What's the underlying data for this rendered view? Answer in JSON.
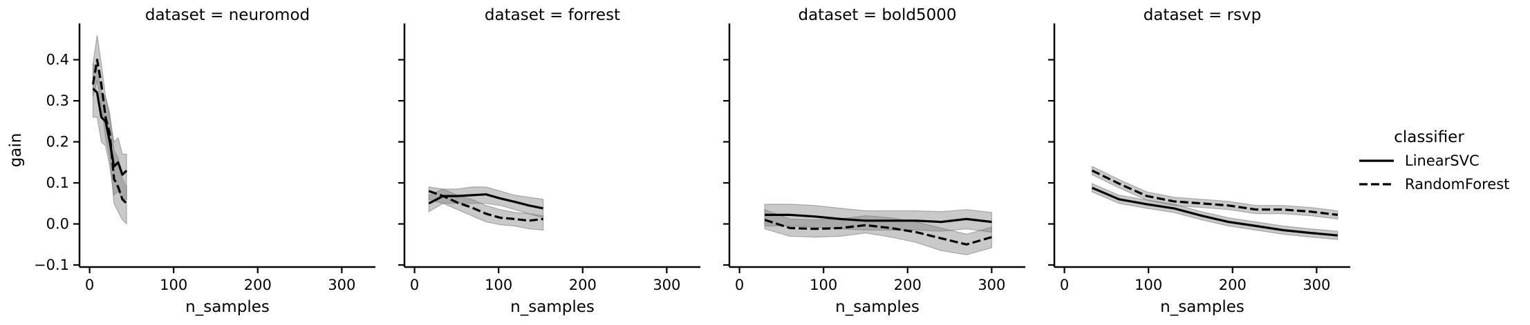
{
  "chart_data": {
    "type": "line",
    "facet_label": "dataset",
    "ylabel": "gain",
    "xlabel": "n_samples",
    "xlim": [
      -12,
      340
    ],
    "ylim": [
      -0.105,
      0.485
    ],
    "x_ticks": [
      0,
      100,
      200,
      300
    ],
    "y_ticks": [
      -0.1,
      0.0,
      0.1,
      0.2,
      0.3,
      0.4
    ],
    "y_tick_labels": [
      "−0.1",
      "0.0",
      "0.1",
      "0.2",
      "0.3",
      "0.4"
    ],
    "grid": false,
    "shaded_bands": "confidence interval (grey)",
    "legend": {
      "title": "classifier",
      "placement": "right",
      "entries": [
        {
          "name": "LinearSVC",
          "style": "solid"
        },
        {
          "name": "RandomForest",
          "style": "dashed"
        }
      ]
    },
    "colors": {
      "line": "#000000",
      "band": "#7f7f7f"
    },
    "panels": [
      {
        "title": "dataset = neuromod",
        "series": [
          {
            "name": "LinearSVC",
            "x": [
              4,
              9,
              14,
              19,
              24,
              29,
              34,
              39,
              44
            ],
            "y": [
              0.33,
              0.32,
              0.26,
              0.25,
              0.2,
              0.14,
              0.15,
              0.12,
              0.13
            ],
            "lower": [
              0.26,
              0.26,
              0.2,
              0.19,
              0.14,
              0.07,
              0.08,
              0.06,
              0.06
            ],
            "upper": [
              0.39,
              0.38,
              0.32,
              0.31,
              0.26,
              0.2,
              0.21,
              0.17,
              0.17
            ]
          },
          {
            "name": "RandomForest",
            "x": [
              4,
              9,
              14,
              19,
              24,
              29,
              34,
              39,
              44
            ],
            "y": [
              0.34,
              0.4,
              0.34,
              0.26,
              0.22,
              0.11,
              0.09,
              0.06,
              0.05
            ],
            "lower": [
              0.31,
              0.35,
              0.29,
              0.21,
              0.16,
              0.05,
              0.03,
              0.01,
              0.0
            ],
            "upper": [
              0.39,
              0.46,
              0.39,
              0.31,
              0.27,
              0.18,
              0.16,
              0.11,
              0.09
            ]
          }
        ]
      },
      {
        "title": "dataset = forrest",
        "series": [
          {
            "name": "LinearSVC",
            "x": [
              17,
              34,
              51,
              68,
              85,
              102,
              119,
              136,
              153
            ],
            "y": [
              0.05,
              0.068,
              0.068,
              0.07,
              0.072,
              0.062,
              0.054,
              0.045,
              0.038
            ],
            "lower": [
              0.03,
              0.05,
              0.05,
              0.05,
              0.05,
              0.045,
              0.035,
              0.025,
              0.015
            ],
            "upper": [
              0.07,
              0.085,
              0.085,
              0.09,
              0.09,
              0.08,
              0.07,
              0.065,
              0.06
            ]
          },
          {
            "name": "RandomForest",
            "x": [
              17,
              34,
              51,
              68,
              85,
              102,
              119,
              136,
              153
            ],
            "y": [
              0.08,
              0.068,
              0.052,
              0.04,
              0.025,
              0.015,
              0.012,
              0.008,
              0.012
            ],
            "lower": [
              0.06,
              0.05,
              0.035,
              0.02,
              0.005,
              -0.002,
              -0.005,
              -0.012,
              -0.015
            ],
            "upper": [
              0.09,
              0.085,
              0.07,
              0.06,
              0.045,
              0.035,
              0.028,
              0.025,
              0.02
            ]
          }
        ]
      },
      {
        "title": "dataset = bold5000",
        "series": [
          {
            "name": "LinearSVC",
            "x": [
              30,
              60,
              90,
              120,
              150,
              180,
              210,
              240,
              270,
              300
            ],
            "y": [
              0.022,
              0.022,
              0.018,
              0.012,
              0.008,
              0.008,
              0.008,
              0.005,
              0.012,
              0.005
            ],
            "lower": [
              -0.005,
              -0.005,
              -0.008,
              -0.012,
              -0.015,
              -0.015,
              -0.015,
              -0.018,
              -0.012,
              -0.02
            ],
            "upper": [
              0.048,
              0.048,
              0.045,
              0.038,
              0.032,
              0.032,
              0.032,
              0.03,
              0.035,
              0.028
            ]
          },
          {
            "name": "RandomForest",
            "x": [
              30,
              60,
              90,
              120,
              150,
              180,
              210,
              240,
              270,
              300
            ],
            "y": [
              0.01,
              -0.01,
              -0.012,
              -0.01,
              -0.003,
              -0.01,
              -0.02,
              -0.035,
              -0.05,
              -0.032
            ],
            "lower": [
              -0.012,
              -0.03,
              -0.032,
              -0.03,
              -0.022,
              -0.032,
              -0.045,
              -0.065,
              -0.075,
              -0.058
            ],
            "upper": [
              0.035,
              0.012,
              0.01,
              0.012,
              0.02,
              0.015,
              0.005,
              -0.01,
              -0.025,
              -0.008
            ]
          }
        ]
      },
      {
        "title": "dataset = rsvp",
        "series": [
          {
            "name": "LinearSVC",
            "x": [
              33,
              65,
              98,
              130,
              163,
              195,
              228,
              260,
              293,
              325
            ],
            "y": [
              0.088,
              0.06,
              0.048,
              0.038,
              0.02,
              0.005,
              -0.005,
              -0.015,
              -0.022,
              -0.028
            ],
            "lower": [
              0.078,
              0.05,
              0.038,
              0.028,
              0.01,
              -0.005,
              -0.015,
              -0.025,
              -0.032,
              -0.038
            ],
            "upper": [
              0.098,
              0.07,
              0.058,
              0.048,
              0.03,
              0.015,
              0.005,
              -0.005,
              -0.012,
              -0.018
            ]
          },
          {
            "name": "RandomForest",
            "x": [
              33,
              65,
              98,
              130,
              163,
              195,
              228,
              260,
              293,
              325
            ],
            "y": [
              0.13,
              0.098,
              0.068,
              0.055,
              0.05,
              0.045,
              0.035,
              0.035,
              0.03,
              0.022
            ],
            "lower": [
              0.12,
              0.088,
              0.058,
              0.045,
              0.04,
              0.035,
              0.025,
              0.025,
              0.02,
              0.012
            ],
            "upper": [
              0.14,
              0.108,
              0.078,
              0.065,
              0.06,
              0.055,
              0.045,
              0.045,
              0.04,
              0.032
            ]
          }
        ]
      }
    ]
  }
}
